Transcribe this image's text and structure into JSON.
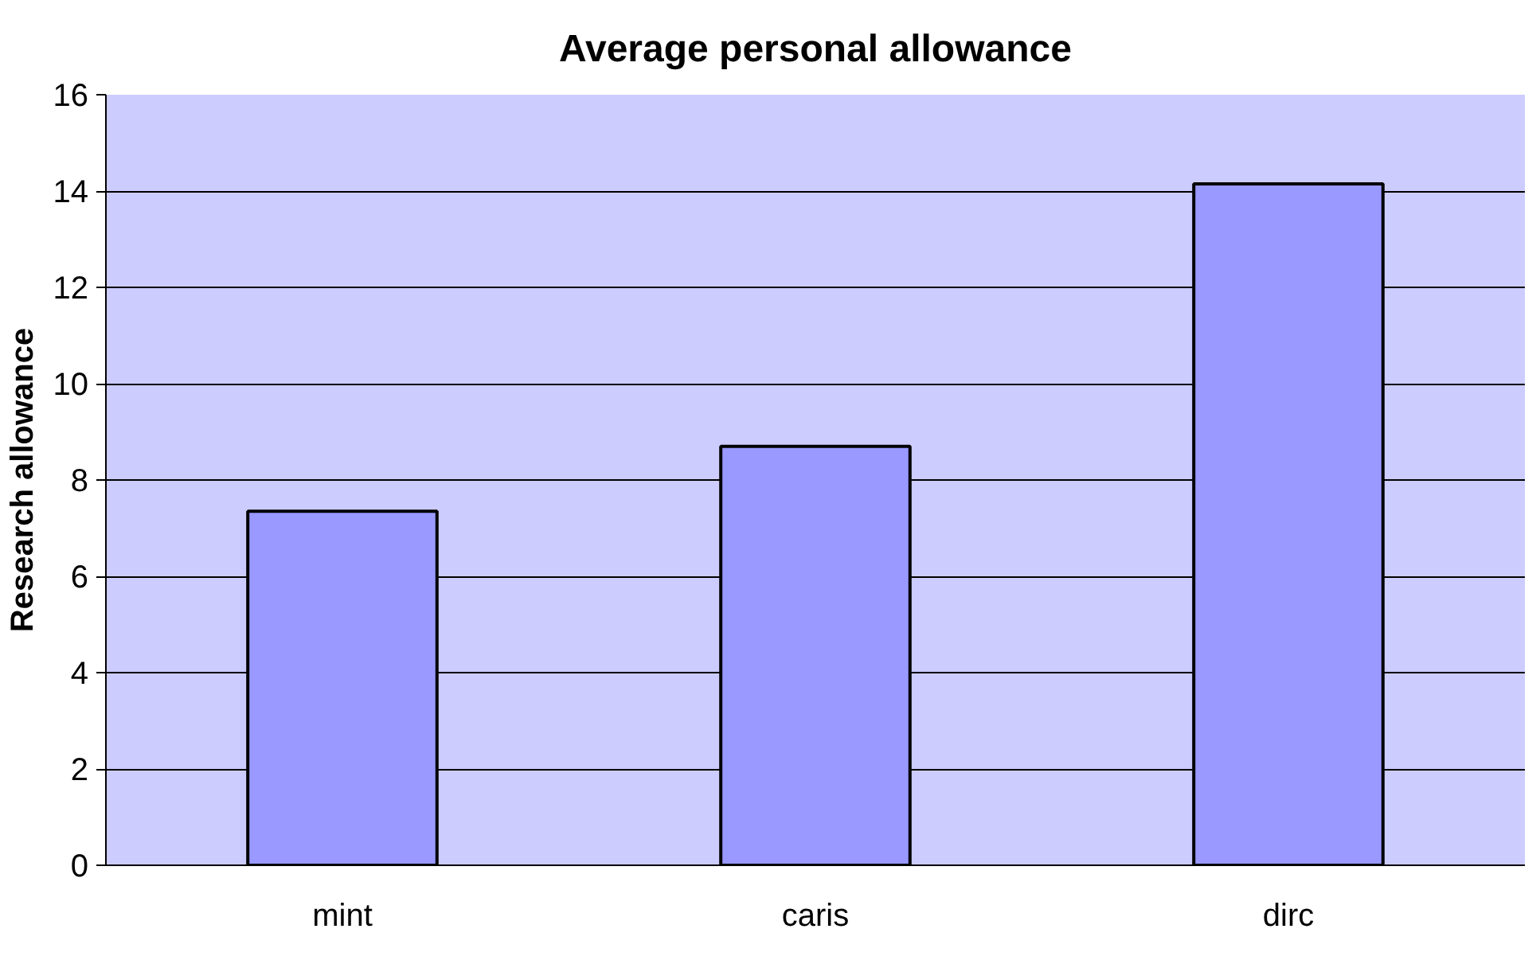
{
  "chart_data": {
    "type": "bar",
    "title": "Average personal allowance",
    "ylabel": "Research allowance",
    "categories": [
      "mint",
      "caris",
      "dirc"
    ],
    "series": [
      {
        "color": "#9999ff",
        "values": [
          7.35,
          8.7,
          14.15
        ]
      }
    ],
    "ylim": [
      0,
      16
    ],
    "yticks": [
      0,
      2,
      4,
      6,
      8,
      10,
      12,
      14,
      16
    ],
    "grid": "y"
  }
}
